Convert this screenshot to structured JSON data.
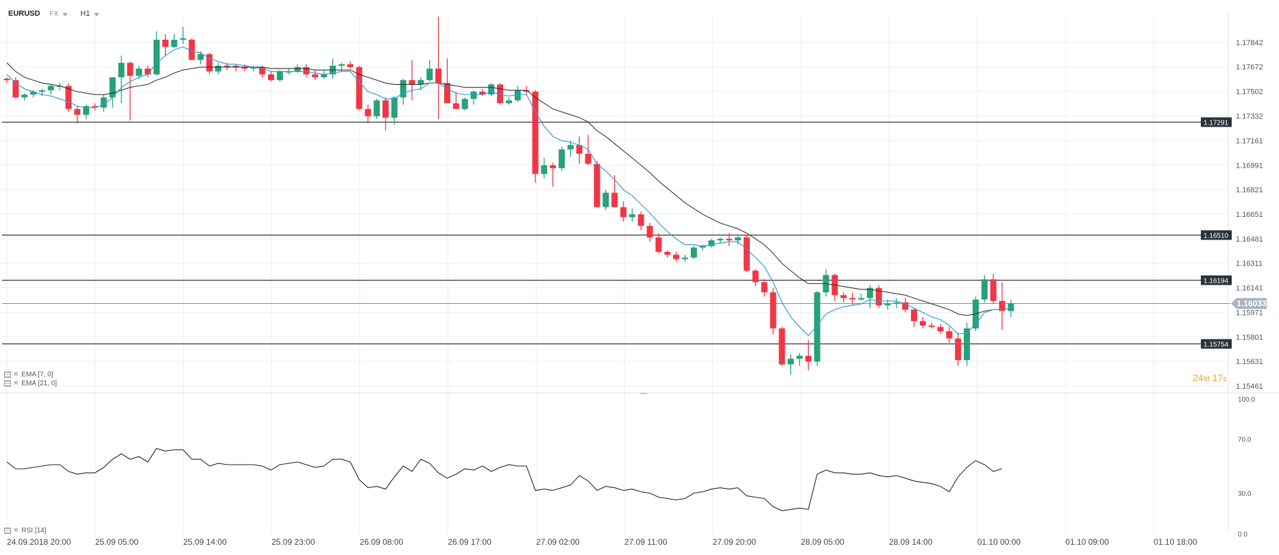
{
  "header": {
    "symbol": "EURUSD",
    "market": "FX",
    "timeframe": "H1"
  },
  "indicators": {
    "ema7": "EMA  [7, 0]",
    "ema21": "EMA  [21, 0]",
    "rsi": "RSI  [14]"
  },
  "countdown": {
    "minutes": "24",
    "m_unit": "M",
    "seconds": "17",
    "s_unit": "s"
  },
  "colors": {
    "up": "#26a17b",
    "down": "#f23645",
    "ema7": "#2e9fd6",
    "ema21": "#333333",
    "level": "#333333",
    "rsi": "#222222",
    "grid": "#eeeeee",
    "countdown": "#f5a623"
  },
  "chart_data": [
    {
      "type": "candlestick",
      "title": "EURUSD",
      "price_ticks": [
        "1.17842",
        "1.17672",
        "1.17502",
        "1.17332",
        "1.17161",
        "1.16991",
        "1.16821",
        "1.16651",
        "1.16481",
        "1.16311",
        "1.16141",
        "1.15971",
        "1.15801",
        "1.15631",
        "1.15461"
      ],
      "ylim": [
        1.15461,
        1.18012
      ],
      "x_ticks": [
        "24.09.2018  20:00",
        "25.09  05:00",
        "25.09  14:00",
        "25.09  23:00",
        "26.09  08:00",
        "26.09  17:00",
        "27.09  02:00",
        "27.09  11:00",
        "27.09  20:00",
        "28.09  05:00",
        "28.09  14:00",
        "01.10  00:00",
        "01.10  09:00",
        "01.10  18:00"
      ],
      "levels": [
        "1.17291",
        "1.16510",
        "1.16194",
        "1.15754"
      ],
      "current_price": "1.16033",
      "candles": [
        [
          1.1759,
          1.176,
          1.1756,
          1.1758
        ],
        [
          1.1758,
          1.176,
          1.1745,
          1.1746
        ],
        [
          1.1746,
          1.1749,
          1.1744,
          1.1748
        ],
        [
          1.1748,
          1.1751,
          1.1746,
          1.175
        ],
        [
          1.175,
          1.1752,
          1.1747,
          1.1751
        ],
        [
          1.1751,
          1.1755,
          1.1748,
          1.1754
        ],
        [
          1.1754,
          1.1756,
          1.1751,
          1.1754
        ],
        [
          1.1754,
          1.1756,
          1.1736,
          1.1738
        ],
        [
          1.1738,
          1.174,
          1.1728,
          1.1734
        ],
        [
          1.1734,
          1.1741,
          1.1731,
          1.174
        ],
        [
          1.174,
          1.1742,
          1.1737,
          1.1739
        ],
        [
          1.1739,
          1.1748,
          1.1736,
          1.1746
        ],
        [
          1.1746,
          1.176,
          1.1739,
          1.176
        ],
        [
          1.176,
          1.1775,
          1.1742,
          1.177
        ],
        [
          1.177,
          1.1771,
          1.173,
          1.1761
        ],
        [
          1.1761,
          1.1768,
          1.1759,
          1.1766
        ],
        [
          1.1766,
          1.1768,
          1.176,
          1.1762
        ],
        [
          1.1762,
          1.1792,
          1.1761,
          1.1786
        ],
        [
          1.1786,
          1.179,
          1.1775,
          1.1781
        ],
        [
          1.1781,
          1.179,
          1.178,
          1.1786
        ],
        [
          1.1786,
          1.1795,
          1.1783,
          1.1787
        ],
        [
          1.1786,
          1.1787,
          1.1772,
          1.1772
        ],
        [
          1.1772,
          1.1778,
          1.1769,
          1.1776
        ],
        [
          1.1776,
          1.1777,
          1.1762,
          1.1764
        ],
        [
          1.1764,
          1.177,
          1.1762,
          1.1768
        ],
        [
          1.1768,
          1.177,
          1.1765,
          1.1767
        ],
        [
          1.1768,
          1.1769,
          1.1764,
          1.1767
        ],
        [
          1.1767,
          1.1769,
          1.1764,
          1.1766
        ],
        [
          1.1766,
          1.1768,
          1.1764,
          1.1767
        ],
        [
          1.1767,
          1.1768,
          1.176,
          1.1762
        ],
        [
          1.1762,
          1.1764,
          1.1757,
          1.1758
        ],
        [
          1.1758,
          1.1765,
          1.1757,
          1.1764
        ],
        [
          1.1764,
          1.1766,
          1.1762,
          1.1764
        ],
        [
          1.1764,
          1.1769,
          1.1763,
          1.1767
        ],
        [
          1.1767,
          1.1769,
          1.176,
          1.1762
        ],
        [
          1.1762,
          1.1765,
          1.1758,
          1.176
        ],
        [
          1.176,
          1.1765,
          1.1759,
          1.1762
        ],
        [
          1.1762,
          1.1773,
          1.1759,
          1.1768
        ],
        [
          1.1768,
          1.177,
          1.1764,
          1.1769
        ],
        [
          1.1769,
          1.1771,
          1.1766,
          1.1767
        ],
        [
          1.1767,
          1.1768,
          1.1737,
          1.1738
        ],
        [
          1.1738,
          1.1741,
          1.1728,
          1.1733
        ],
        [
          1.1733,
          1.1745,
          1.1731,
          1.1744
        ],
        [
          1.1744,
          1.1746,
          1.1723,
          1.1732
        ],
        [
          1.1732,
          1.1747,
          1.1727,
          1.1746
        ],
        [
          1.1746,
          1.1759,
          1.1741,
          1.1758
        ],
        [
          1.1758,
          1.1772,
          1.1744,
          1.1755
        ],
        [
          1.1755,
          1.176,
          1.1751,
          1.1758
        ],
        [
          1.1758,
          1.1772,
          1.1757,
          1.1766
        ],
        [
          1.1766,
          1.1802,
          1.1731,
          1.1756
        ],
        [
          1.1756,
          1.1773,
          1.1742,
          1.1742
        ],
        [
          1.1742,
          1.175,
          1.1738,
          1.1738
        ],
        [
          1.1738,
          1.1746,
          1.1737,
          1.1745
        ],
        [
          1.1745,
          1.1751,
          1.1741,
          1.175
        ],
        [
          1.175,
          1.1752,
          1.1747,
          1.1748
        ],
        [
          1.1748,
          1.1756,
          1.1747,
          1.1755
        ],
        [
          1.1755,
          1.1756,
          1.1741,
          1.1742
        ],
        [
          1.1742,
          1.1746,
          1.1741,
          1.1744
        ],
        [
          1.1744,
          1.1754,
          1.1743,
          1.1751
        ],
        [
          1.1751,
          1.1754,
          1.1747,
          1.175
        ],
        [
          1.175,
          1.1751,
          1.1687,
          1.1693
        ],
        [
          1.1693,
          1.1704,
          1.169,
          1.1699
        ],
        [
          1.1699,
          1.1701,
          1.1684,
          1.1697
        ],
        [
          1.1697,
          1.1712,
          1.1695,
          1.171
        ],
        [
          1.171,
          1.1716,
          1.1705,
          1.1713
        ],
        [
          1.1713,
          1.1719,
          1.17,
          1.1707
        ],
        [
          1.1707,
          1.172,
          1.1699,
          1.17
        ],
        [
          1.17,
          1.1702,
          1.167,
          1.167
        ],
        [
          1.167,
          1.1682,
          1.1668,
          1.168
        ],
        [
          1.168,
          1.1692,
          1.167,
          1.167
        ],
        [
          1.167,
          1.1674,
          1.166,
          1.1663
        ],
        [
          1.1663,
          1.1669,
          1.166,
          1.1665
        ],
        [
          1.1665,
          1.1667,
          1.1654,
          1.1657
        ],
        [
          1.1657,
          1.1659,
          1.1646,
          1.1649
        ],
        [
          1.1649,
          1.1652,
          1.1638,
          1.1639
        ],
        [
          1.1639,
          1.164,
          1.1635,
          1.1637
        ],
        [
          1.1637,
          1.1639,
          1.1632,
          1.1634
        ],
        [
          1.1634,
          1.1637,
          1.1632,
          1.1635
        ],
        [
          1.1635,
          1.1643,
          1.1634,
          1.1642
        ],
        [
          1.1642,
          1.1644,
          1.164,
          1.1643
        ],
        [
          1.1643,
          1.1648,
          1.1642,
          1.1647
        ],
        [
          1.1647,
          1.1649,
          1.1645,
          1.1648
        ],
        [
          1.1648,
          1.1652,
          1.1643,
          1.1647
        ],
        [
          1.1647,
          1.1651,
          1.1644,
          1.1649
        ],
        [
          1.1649,
          1.1651,
          1.1625,
          1.1626
        ],
        [
          1.1626,
          1.1627,
          1.1615,
          1.1618
        ],
        [
          1.1618,
          1.162,
          1.1608,
          1.1611
        ],
        [
          1.1611,
          1.1614,
          1.1582,
          1.1586
        ],
        [
          1.1586,
          1.1587,
          1.156,
          1.1561
        ],
        [
          1.1561,
          1.1568,
          1.1554,
          1.1565
        ],
        [
          1.1565,
          1.1569,
          1.156,
          1.1567
        ],
        [
          1.1567,
          1.1578,
          1.1557,
          1.1563
        ],
        [
          1.1563,
          1.1612,
          1.156,
          1.1611
        ],
        [
          1.1611,
          1.1627,
          1.1608,
          1.1623
        ],
        [
          1.1623,
          1.1624,
          1.1605,
          1.1609
        ],
        [
          1.1609,
          1.1611,
          1.1604,
          1.1607
        ],
        [
          1.1607,
          1.1611,
          1.1602,
          1.1606
        ],
        [
          1.1606,
          1.161,
          1.1605,
          1.1607
        ],
        [
          1.1607,
          1.1616,
          1.16,
          1.1614
        ],
        [
          1.1614,
          1.1616,
          1.16,
          1.1602
        ],
        [
          1.1602,
          1.1606,
          1.1599,
          1.1603
        ],
        [
          1.1603,
          1.1607,
          1.16,
          1.1604
        ],
        [
          1.1604,
          1.1607,
          1.1597,
          1.1599
        ],
        [
          1.1599,
          1.16,
          1.1587,
          1.1591
        ],
        [
          1.1591,
          1.1594,
          1.1586,
          1.1588
        ],
        [
          1.1588,
          1.159,
          1.1586,
          1.1587
        ],
        [
          1.1587,
          1.1589,
          1.1582,
          1.1584
        ],
        [
          1.1584,
          1.1587,
          1.1576,
          1.1579
        ],
        [
          1.1579,
          1.1583,
          1.156,
          1.1564
        ],
        [
          1.1564,
          1.159,
          1.156,
          1.1586
        ],
        [
          1.1586,
          1.1608,
          1.1584,
          1.1606
        ],
        [
          1.1606,
          1.1623,
          1.1604,
          1.162
        ],
        [
          1.162,
          1.1624,
          1.1603,
          1.1605
        ],
        [
          1.1605,
          1.1618,
          1.1585,
          1.1598
        ],
        [
          1.1598,
          1.1606,
          1.1594,
          1.16033
        ]
      ],
      "ema7": [
        1.1762,
        1.1756,
        1.1752,
        1.175,
        1.1748,
        1.1747,
        1.1745,
        1.1743,
        1.174,
        1.1739,
        1.1739,
        1.1741,
        1.1746,
        1.1753,
        1.1757,
        1.176,
        1.1762,
        1.177,
        1.1775,
        1.1779,
        1.1781,
        1.1778,
        1.1777,
        1.1773,
        1.1771,
        1.1769,
        1.1769,
        1.1768,
        1.1767,
        1.1766,
        1.1764,
        1.1764,
        1.1764,
        1.1764,
        1.1764,
        1.1763,
        1.1762,
        1.1763,
        1.1764,
        1.1764,
        1.1757,
        1.175,
        1.1748,
        1.1745,
        1.1745,
        1.1749,
        1.1751,
        1.1752,
        1.1756,
        1.1756,
        1.1752,
        1.1749,
        1.1748,
        1.1748,
        1.1748,
        1.175,
        1.1748,
        1.1747,
        1.1748,
        1.1748,
        1.1736,
        1.1726,
        1.1719,
        1.1716,
        1.1715,
        1.1713,
        1.171,
        1.17,
        1.1695,
        1.1689,
        1.1682,
        1.1678,
        1.1672,
        1.1666,
        1.1659,
        1.1653,
        1.1648,
        1.1644,
        1.1644,
        1.1643,
        1.1644,
        1.1645,
        1.1646,
        1.1646,
        1.1641,
        1.1635,
        1.1629,
        1.1618,
        1.1604,
        1.1594,
        1.1587,
        1.1581,
        1.1588,
        1.1596,
        1.1599,
        1.1601,
        1.1602,
        1.1603,
        1.1606,
        1.1605,
        1.1605,
        1.1605,
        1.1603,
        1.16,
        1.1597,
        1.1594,
        1.1592,
        1.1588,
        1.1582,
        1.1583,
        1.1589,
        1.1597,
        1.1599,
        1.1599,
        1.16
      ],
      "ema21": [
        1.177,
        1.1764,
        1.176,
        1.1758,
        1.1756,
        1.1755,
        1.1754,
        1.1752,
        1.175,
        1.1749,
        1.1748,
        1.1748,
        1.1749,
        1.1751,
        1.1753,
        1.1754,
        1.1755,
        1.1758,
        1.176,
        1.1763,
        1.1765,
        1.1766,
        1.1767,
        1.1767,
        1.1767,
        1.1767,
        1.1767,
        1.1767,
        1.1767,
        1.1767,
        1.1766,
        1.1766,
        1.1766,
        1.1766,
        1.1766,
        1.1765,
        1.1765,
        1.1765,
        1.1765,
        1.1765,
        1.1762,
        1.176,
        1.1758,
        1.1756,
        1.1755,
        1.1755,
        1.1755,
        1.1755,
        1.1756,
        1.1756,
        1.1755,
        1.1754,
        1.1753,
        1.1753,
        1.1753,
        1.1753,
        1.1752,
        1.1751,
        1.1751,
        1.1751,
        1.1746,
        1.1742,
        1.1738,
        1.1736,
        1.1734,
        1.1732,
        1.1729,
        1.1723,
        1.1719,
        1.1714,
        1.1709,
        1.1704,
        1.1699,
        1.1694,
        1.1688,
        1.1683,
        1.1678,
        1.1673,
        1.1669,
        1.1665,
        1.1662,
        1.1659,
        1.1657,
        1.1655,
        1.1652,
        1.1648,
        1.1644,
        1.1638,
        1.1631,
        1.1626,
        1.1621,
        1.1617,
        1.1617,
        1.1617,
        1.1616,
        1.1615,
        1.1614,
        1.1613,
        1.1613,
        1.1612,
        1.1611,
        1.161,
        1.1609,
        1.1607,
        1.1605,
        1.1603,
        1.1601,
        1.1599,
        1.1596,
        1.1595,
        1.1596,
        1.1598,
        1.1599,
        1.1599,
        1.16
      ]
    },
    {
      "type": "line",
      "title": "RSI  [14]",
      "y_ticks": [
        "100.0",
        "70.0",
        "30.0",
        "0.0"
      ],
      "ylim": [
        0,
        100
      ],
      "values": [
        53,
        48,
        48,
        49,
        50,
        51,
        51,
        46,
        44,
        45,
        45,
        49,
        55,
        59,
        55,
        57,
        53,
        63,
        61,
        62,
        62,
        55,
        55,
        50,
        52,
        51,
        51,
        51,
        51,
        50,
        47,
        51,
        52,
        53,
        51,
        49,
        50,
        55,
        55,
        53,
        40,
        34,
        35,
        33,
        42,
        50,
        46,
        55,
        52,
        45,
        41,
        44,
        48,
        47,
        50,
        46,
        49,
        51,
        50,
        50,
        32,
        33,
        32,
        34,
        36,
        43,
        39,
        32,
        35,
        34,
        32,
        33,
        31,
        30,
        27,
        26,
        25,
        26,
        30,
        31,
        33,
        34,
        33,
        34,
        28,
        27,
        26,
        20,
        17,
        18,
        19,
        18,
        44,
        47,
        45,
        45,
        44,
        44,
        45,
        43,
        42,
        43,
        41,
        39,
        38,
        37,
        35,
        31,
        42,
        49,
        54,
        51,
        46,
        48
      ]
    }
  ]
}
